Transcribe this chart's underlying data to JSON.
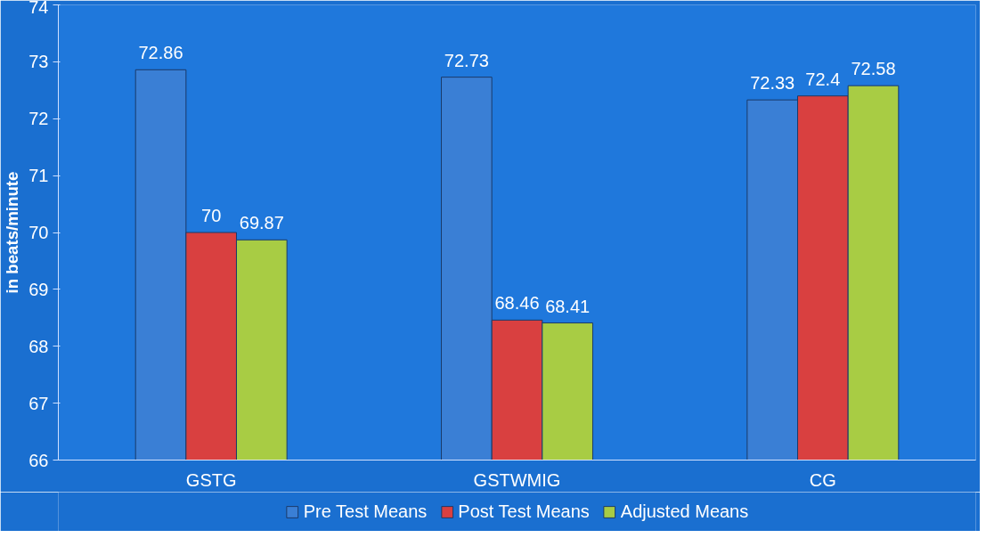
{
  "chart_data": {
    "type": "bar",
    "ylabel": "in beats/minute",
    "categories": [
      "GSTG",
      "GSTWMIG",
      "CG"
    ],
    "series": [
      {
        "name": "Pre Test Means",
        "color": "#3a7fd5",
        "values": [
          72.86,
          72.73,
          72.33
        ]
      },
      {
        "name": "Post Test Means",
        "color": "#d94040",
        "values": [
          70,
          68.46,
          72.4
        ]
      },
      {
        "name": "Adjusted Means",
        "color": "#a8cc44",
        "values": [
          69.87,
          68.41,
          72.58
        ]
      }
    ],
    "ylim": [
      66,
      74
    ],
    "yticks": [
      66,
      67,
      68,
      69,
      70,
      71,
      72,
      73,
      74
    ],
    "data_labels": true,
    "legend": "bottom",
    "grid": false
  }
}
